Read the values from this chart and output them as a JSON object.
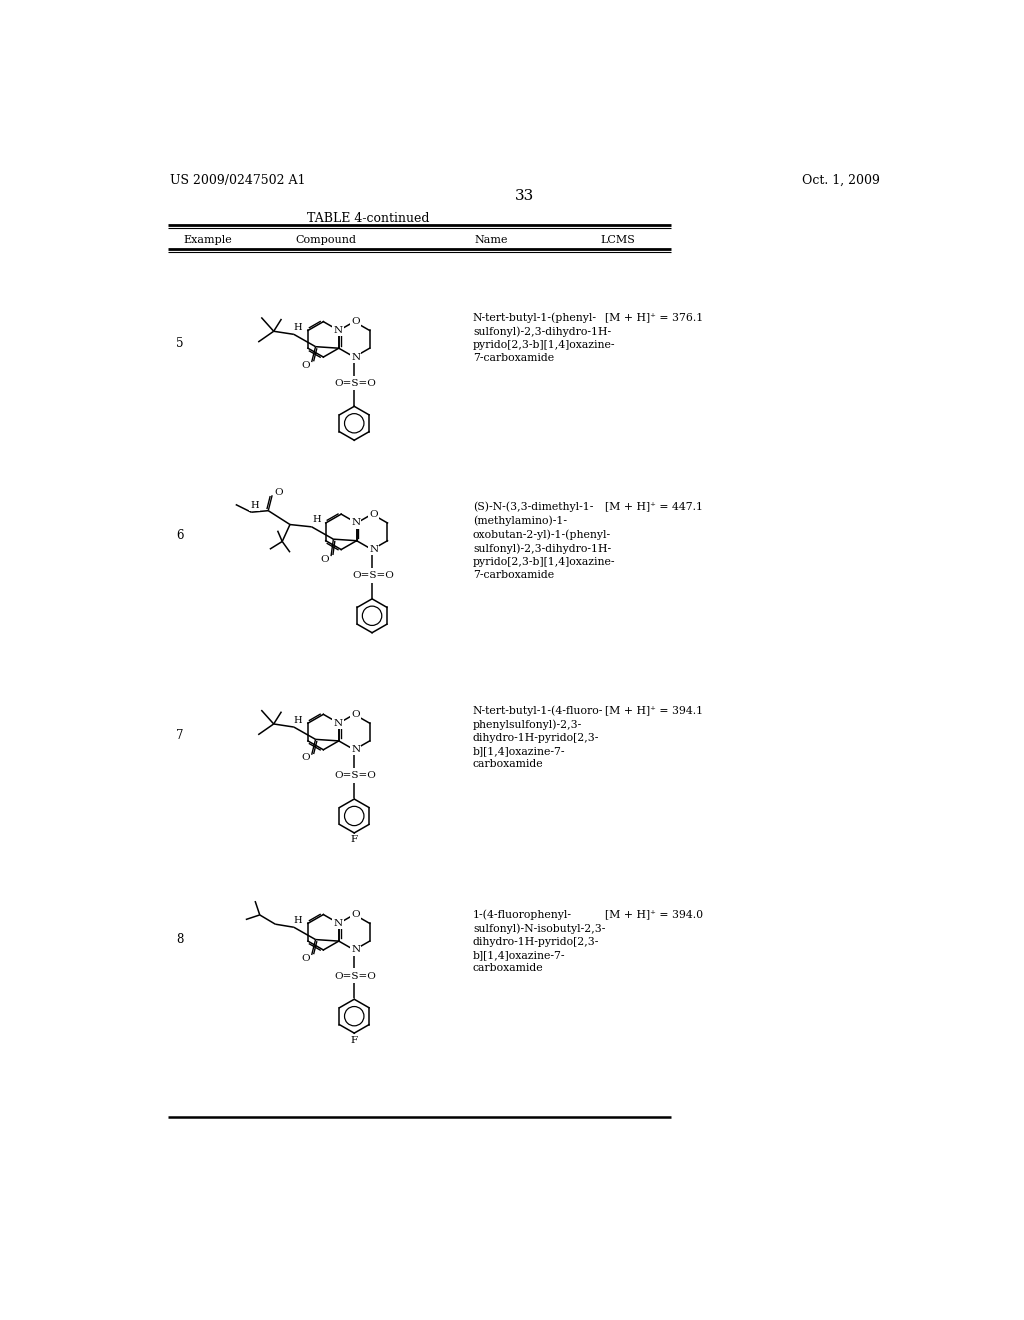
{
  "page_number": "33",
  "patent_number": "US 2009/0247502 A1",
  "patent_date": "Oct. 1, 2009",
  "table_title": "TABLE 4-continued",
  "columns": [
    "Example",
    "Compound",
    "Name",
    "LCMS"
  ],
  "rows": [
    {
      "example": "5",
      "name": "N-tert-butyl-1-(phenyl-\nsulfonyl)-2,3-dihydro-1H-\npyrido[2,3-b][1,4]oxazine-\n7-carboxamide",
      "lcms": "[M + H]⁺ = 376.1"
    },
    {
      "example": "6",
      "name": "(S)-N-(3,3-dimethyl-1-\n(methylamino)-1-\noxobutan-2-yl)-1-(phenyl-\nsulfonyl)-2,3-dihydro-1H-\npyrido[2,3-b][1,4]oxazine-\n7-carboxamide",
      "lcms": "[M + H]⁺ = 447.1"
    },
    {
      "example": "7",
      "name": "N-tert-butyl-1-(4-fluoro-\nphenylsulfonyl)-2,3-\ndihydro-1H-pyrido[2,3-\nb][1,4]oxazine-7-\ncarboxamide",
      "lcms": "[M + H]⁺ = 394.1"
    },
    {
      "example": "8",
      "name": "1-(4-fluorophenyl-\nsulfonyl)-N-isobutyl-2,3-\ndihydro-1H-pyrido[2,3-\nb][1,4]oxazine-7-\ncarboxamide",
      "lcms": "[M + H]⁺ = 394.0"
    }
  ],
  "bg_color": "#ffffff",
  "text_color": "#000000"
}
